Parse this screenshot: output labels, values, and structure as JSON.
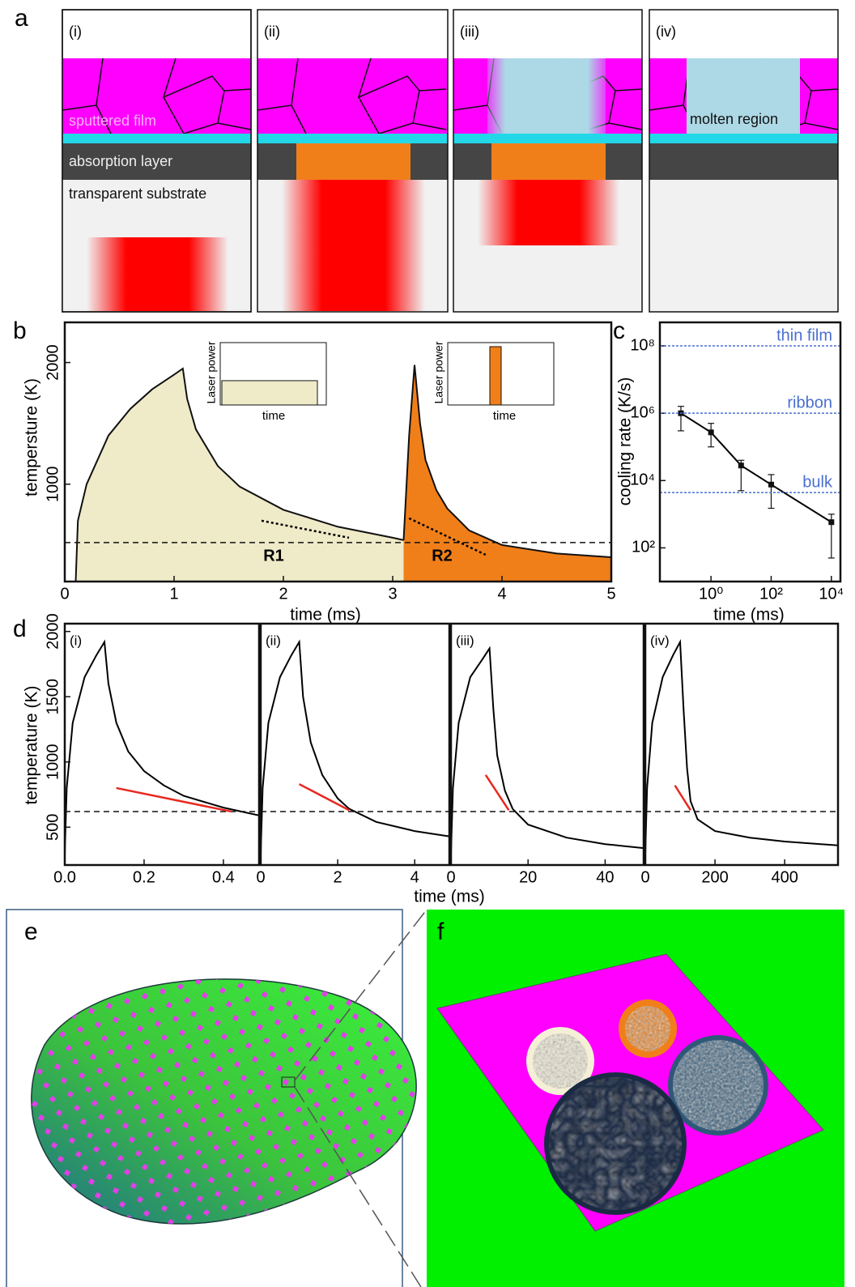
{
  "panel_labels": [
    "a",
    "b",
    "c",
    "d",
    "e",
    "f"
  ],
  "panel_a": {
    "steps": [
      "(i)",
      "(ii)",
      "(iii)",
      "(iv)"
    ],
    "layers": {
      "film": "sputtered film",
      "absorber": "absorption layer",
      "substrate": "transparent substrate",
      "molten": "molten region"
    }
  },
  "chart_data": [
    {
      "type": "area",
      "xlabel": "time (ms)",
      "ylabel": "tempersture (K)",
      "xlim": [
        0,
        5
      ],
      "xticks": [
        0,
        1,
        2,
        3,
        4,
        5
      ],
      "ylim": [
        200,
        2330
      ],
      "yticks": [
        1000,
        2000
      ],
      "series": [
        {
          "name": "R1",
          "color": "#efeac8",
          "x": [
            0.1,
            0.12,
            0.2,
            0.4,
            0.6,
            0.8,
            1.0,
            1.08,
            1.12,
            1.2,
            1.4,
            1.6,
            2.0,
            2.5,
            3.0,
            3.1
          ],
          "values": [
            200,
            700,
            1000,
            1400,
            1620,
            1780,
            1900,
            1950,
            1700,
            1450,
            1150,
            980,
            790,
            650,
            560,
            540
          ]
        },
        {
          "name": "R2",
          "color": "#f07f1a",
          "x": [
            3.1,
            3.15,
            3.2,
            3.25,
            3.3,
            3.4,
            3.5,
            3.7,
            4.0,
            4.5,
            5.0
          ],
          "values": [
            540,
            1400,
            1980,
            1500,
            1200,
            950,
            800,
            620,
            500,
            430,
            400
          ]
        }
      ],
      "hline": 520,
      "tangents": [
        {
          "x": [
            1.8,
            2.6
          ],
          "values": [
            700,
            560
          ]
        },
        {
          "x": [
            3.15,
            3.85
          ],
          "values": [
            720,
            420
          ]
        }
      ],
      "tangent_color": "#000000",
      "insets": [
        {
          "ylabel": "Laser power",
          "xlabel": "time"
        },
        {
          "ylabel": "Laser power",
          "xlabel": "time"
        }
      ]
    },
    {
      "type": "line",
      "xlabel": "time (ms)",
      "ylabel": "cooling rate (K/s)",
      "xlog": true,
      "ylog": true,
      "xlim": [
        0.02,
        20000
      ],
      "xticks": [
        {
          "value": 1,
          "label": "10⁰"
        },
        {
          "value": 100,
          "label": "10²"
        },
        {
          "value": 10000,
          "label": "10⁴"
        }
      ],
      "ylim": [
        10,
        500000000
      ],
      "yticks": [
        {
          "value": 100,
          "label": "10²"
        },
        {
          "value": 10000,
          "label": "10⁴"
        },
        {
          "value": 1000000,
          "label": "10⁶"
        },
        {
          "value": 100000000,
          "label": "10⁸"
        }
      ],
      "series": [
        {
          "color": "#000000",
          "x": [
            0.1,
            1,
            10,
            100,
            10000
          ],
          "values": [
            1000000,
            270000,
            28000,
            7600,
            580
          ],
          "error_low": [
            300000,
            100000,
            5000,
            1500,
            50
          ],
          "error_high": [
            1600000,
            500000,
            40000,
            15000,
            1000
          ]
        }
      ],
      "reference_lines": [
        {
          "label": "thin film",
          "value": 100000000
        },
        {
          "label": "ribbon",
          "value": 1000000
        },
        {
          "label": "bulk",
          "value": 4400
        }
      ],
      "reference_color": "#4a6fd0"
    },
    {
      "type": "line",
      "label": "(i)",
      "xlabel": "time (ms)",
      "ylabel": "temperature (K)",
      "xlim": [
        0,
        0.49
      ],
      "xticks": [
        {
          "value": 0,
          "label": "0.0"
        },
        0.2,
        0.4
      ],
      "ylim": [
        210,
        2060
      ],
      "yticks": [
        500,
        1000,
        1500,
        2000
      ],
      "hline": 620,
      "series": [
        {
          "color": "#000000",
          "x": [
            0,
            0.005,
            0.02,
            0.05,
            0.08,
            0.1,
            0.11,
            0.13,
            0.16,
            0.2,
            0.25,
            0.3,
            0.4,
            0.49
          ],
          "values": [
            300,
            800,
            1300,
            1650,
            1820,
            1920,
            1600,
            1300,
            1080,
            930,
            820,
            740,
            650,
            590
          ]
        }
      ],
      "tangents": [
        {
          "x": [
            0.13,
            0.42
          ],
          "values": [
            800,
            620
          ]
        }
      ],
      "tangent_color": "#e8281e"
    },
    {
      "type": "line",
      "label": "(ii)",
      "xlim": [
        0,
        4.9
      ],
      "xticks": [
        0,
        2,
        4
      ],
      "ylim": [
        210,
        2060
      ],
      "hline": 620,
      "series": [
        {
          "color": "#000000",
          "x": [
            0,
            0.05,
            0.2,
            0.5,
            0.8,
            1.0,
            1.1,
            1.3,
            1.6,
            2,
            2.3,
            3,
            4,
            4.9
          ],
          "values": [
            300,
            800,
            1300,
            1650,
            1820,
            1920,
            1500,
            1150,
            900,
            720,
            640,
            540,
            470,
            430
          ]
        }
      ],
      "tangents": [
        {
          "x": [
            1.0,
            2.3
          ],
          "values": [
            830,
            630
          ]
        }
      ],
      "tangent_color": "#e8281e"
    },
    {
      "type": "line",
      "label": "(iii)",
      "xlim": [
        0,
        50
      ],
      "xticks": [
        0,
        20,
        40
      ],
      "ylim": [
        210,
        2060
      ],
      "hline": 620,
      "series": [
        {
          "color": "#000000",
          "x": [
            0,
            0.5,
            2,
            5,
            8,
            10,
            11,
            12,
            14,
            16,
            20,
            30,
            40,
            50
          ],
          "values": [
            300,
            800,
            1300,
            1650,
            1780,
            1870,
            1400,
            1050,
            780,
            640,
            520,
            420,
            370,
            340
          ]
        }
      ],
      "tangents": [
        {
          "x": [
            9,
            15
          ],
          "values": [
            900,
            630
          ]
        }
      ],
      "tangent_color": "#e8281e"
    },
    {
      "type": "line",
      "label": "(iv)",
      "xlim": [
        0,
        553
      ],
      "xticks": [
        0,
        200,
        400
      ],
      "ylim": [
        210,
        2060
      ],
      "hline": 620,
      "series": [
        {
          "color": "#000000",
          "x": [
            0,
            5,
            20,
            50,
            80,
            100,
            110,
            120,
            130,
            150,
            200,
            300,
            400,
            553
          ],
          "values": [
            300,
            800,
            1300,
            1650,
            1820,
            1920,
            1400,
            950,
            700,
            560,
            470,
            420,
            390,
            360
          ]
        }
      ],
      "tangents": [
        {
          "x": [
            85,
            130
          ],
          "values": [
            820,
            630
          ]
        }
      ],
      "tangent_color": "#e8281e"
    }
  ]
}
